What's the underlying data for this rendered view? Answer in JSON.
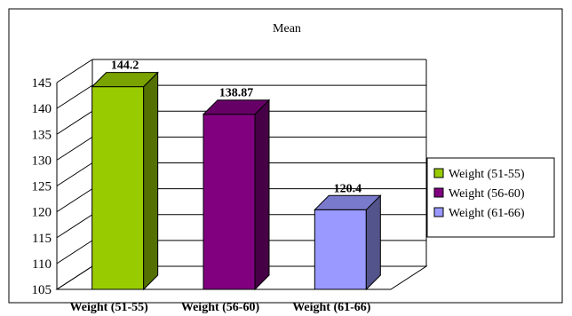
{
  "chart_data": {
    "type": "bar",
    "title": "Mean",
    "categories": [
      "Weight (51-55)",
      "Weight (56-60)",
      "Weight (61-66)"
    ],
    "series": [
      {
        "name": "Weight (51-55)",
        "values": [
          144.2,
          null,
          null
        ],
        "color": "#99CC00"
      },
      {
        "name": "Weight (56-60)",
        "values": [
          null,
          138.87,
          null
        ],
        "color": "#800080"
      },
      {
        "name": "Weight (61-66)",
        "values": [
          null,
          null,
          120.4
        ],
        "color": "#9999FF"
      }
    ],
    "values": [
      144.2,
      138.87,
      120.4
    ],
    "data_labels": [
      "144.2",
      "138.87",
      "120.4"
    ],
    "ylim": [
      105,
      145
    ],
    "yticks": [
      "105",
      "110",
      "115",
      "120",
      "125",
      "130",
      "135",
      "140",
      "145"
    ],
    "grid": true,
    "legend_position": "right",
    "three_d": true
  }
}
